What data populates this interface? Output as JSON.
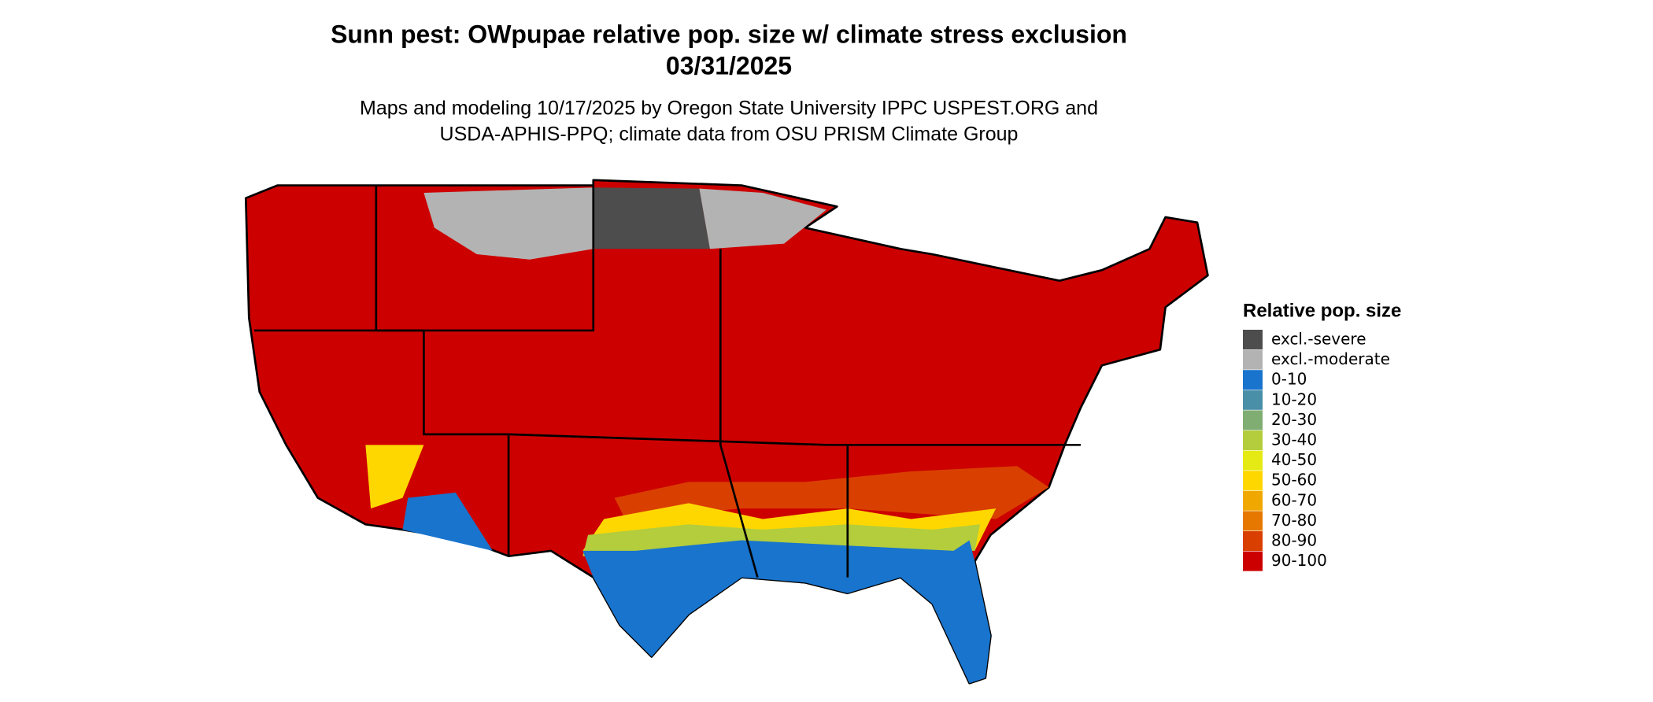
{
  "title": "Sunn pest: OWpupae relative pop. size w/ climate stress exclusion",
  "date": "03/31/2025",
  "subtitle": [
    "Maps and modeling 10/17/2025 by Oregon State University IPPC USPEST.ORG and",
    "USDA-APHIS-PPQ; climate data from OSU PRISM Climate Group"
  ],
  "legend": {
    "title": "Relative pop. size",
    "items": [
      {
        "label": "excl.-severe",
        "color": "#4d4d4d"
      },
      {
        "label": "excl.-moderate",
        "color": "#b3b3b3"
      },
      {
        "label": "0-10",
        "color": "#1874cd"
      },
      {
        "label": "10-20",
        "color": "#4a8fa8"
      },
      {
        "label": "20-30",
        "color": "#7fad72"
      },
      {
        "label": "30-40",
        "color": "#b3cd3c"
      },
      {
        "label": "40-50",
        "color": "#e6ea14"
      },
      {
        "label": "50-60",
        "color": "#ffd700"
      },
      {
        "label": "60-70",
        "color": "#f0a800"
      },
      {
        "label": "70-80",
        "color": "#e67800"
      },
      {
        "label": "80-90",
        "color": "#d94000"
      },
      {
        "label": "90-100",
        "color": "#cd0000"
      }
    ]
  }
}
